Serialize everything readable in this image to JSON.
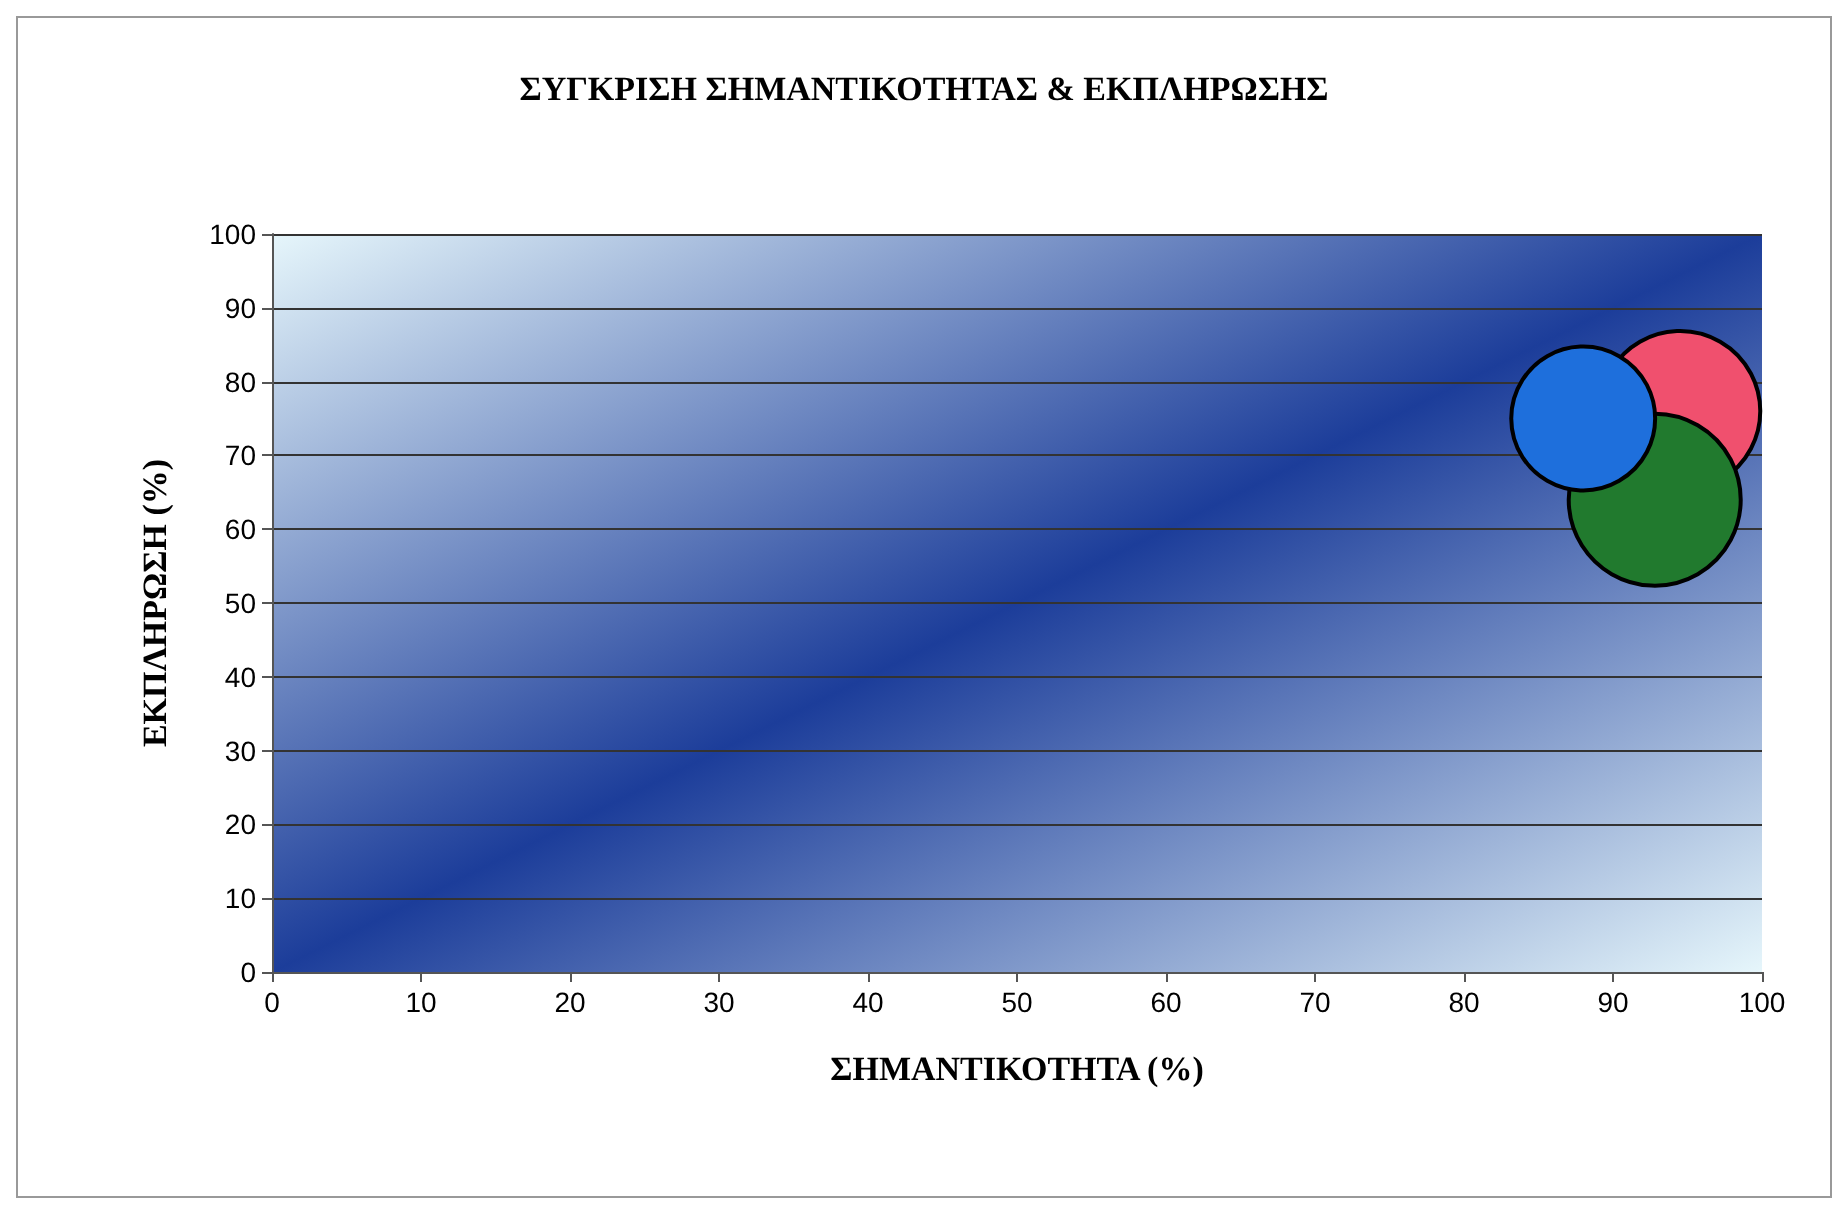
{
  "chart_data": {
    "type": "bubble",
    "title": "ΣΥΓΚΡΙΣΗ ΣΗΜΑΝΤΙΚΟΤΗΤΑΣ & ΕΚΠΛΗΡΩΣΗΣ",
    "xlabel": "ΣΗΜΑΝΤΙΚΟΤΗΤΑ (%)",
    "ylabel": "ΕΚΠΛΗΡΩΣΗ (%)",
    "series": [
      {
        "color": "#f0506e",
        "x": [
          94.5
        ],
        "values": [
          76
        ],
        "sizes": [
          0.87
        ]
      },
      {
        "color": "#217a2e",
        "x": [
          92.8
        ],
        "values": [
          64
        ],
        "sizes": [
          1
        ]
      },
      {
        "color": "#1e6fdc",
        "x": [
          88
        ],
        "values": [
          75
        ],
        "sizes": [
          0.7
        ]
      }
    ],
    "xlim": [
      0,
      100
    ],
    "xticks": [
      0,
      10,
      20,
      30,
      40,
      50,
      60,
      70,
      80,
      90,
      100
    ],
    "ylim": [
      0,
      100
    ],
    "yticks": [
      0,
      10,
      20,
      30,
      40,
      50,
      60,
      70,
      80,
      90,
      100
    ],
    "grid": "y"
  }
}
